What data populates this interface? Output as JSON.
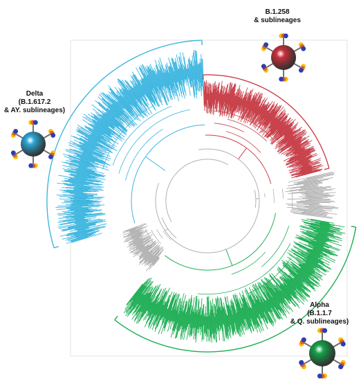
{
  "clades": [
    {
      "id": "b1258",
      "lines": [
        "B.1.258",
        "& sublineages"
      ],
      "color": "#c8404a"
    },
    {
      "id": "delta",
      "lines": [
        "Delta",
        "(B.1.617.2",
        "& AY. sublineages)"
      ],
      "color": "#3bb5e0"
    },
    {
      "id": "alpha",
      "lines": [
        "Alpha",
        "(B.1.1.7",
        "& Q. sublineages)"
      ],
      "color": "#1fae55"
    }
  ],
  "other_color": "#b0b0b0",
  "virion_icons": [
    {
      "clade": "b1258",
      "icon": "virus-particle-icon",
      "body_color": "#cc2f3a"
    },
    {
      "clade": "delta",
      "icon": "virus-particle-icon",
      "body_color": "#2aa8d8"
    },
    {
      "clade": "alpha",
      "icon": "virus-particle-icon",
      "body_color": "#14a34a"
    }
  ]
}
